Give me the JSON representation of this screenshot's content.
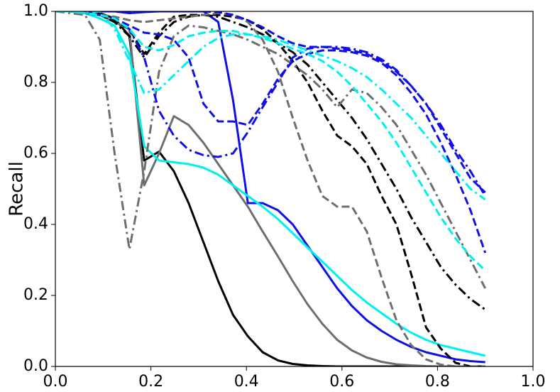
{
  "chart_data": {
    "type": "line",
    "y_label": "Recall",
    "x": [
      0,
      0.031,
      0.062,
      0.093,
      0.124,
      0.155,
      0.186,
      0.217,
      0.248,
      0.279,
      0.31,
      0.341,
      0.372,
      0.403,
      0.434,
      0.466,
      0.497,
      0.528,
      0.559,
      0.59,
      0.621,
      0.652,
      0.683,
      0.714,
      0.745,
      0.776,
      0.807,
      0.838,
      0.869,
      0.9
    ],
    "xlim": [
      0,
      1
    ],
    "ylim": [
      0,
      1
    ],
    "xticks": [
      {
        "value": 0,
        "label": "0.0"
      },
      0.2,
      0.4,
      0.6,
      0.8,
      {
        "value": 1,
        "label": "1.0"
      }
    ],
    "yticks": [
      {
        "value": 0,
        "label": "0.0"
      },
      0.2,
      0.4,
      0.6,
      0.8,
      {
        "value": 1,
        "label": "1.0"
      }
    ],
    "series": [
      {
        "color": "#000000",
        "dash": "solid",
        "values": [
          1,
          1,
          1,
          0.995,
          0.98,
          0.93,
          0.58,
          0.605,
          0.55,
          0.46,
          0.35,
          0.24,
          0.145,
          0.085,
          0.04,
          0.017,
          0.007,
          0.003,
          0.001,
          0,
          0,
          0,
          0,
          0,
          0,
          0,
          0,
          0,
          0,
          0
        ]
      },
      {
        "color": "#6e6e6e",
        "dash": "solid",
        "values": [
          1,
          1,
          0.995,
          0.99,
          0.97,
          0.95,
          0.51,
          0.6,
          0.705,
          0.68,
          0.63,
          0.57,
          0.51,
          0.45,
          0.38,
          0.31,
          0.24,
          0.175,
          0.12,
          0.075,
          0.045,
          0.025,
          0.013,
          0.006,
          0.003,
          0.001,
          0,
          0,
          0,
          0
        ]
      },
      {
        "color": "#1010e6",
        "dash": "solid",
        "values": [
          1,
          1,
          1,
          1,
          1,
          0.995,
          0.998,
          1,
          1,
          1,
          1,
          0.97,
          0.75,
          0.46,
          0.46,
          0.44,
          0.4,
          0.34,
          0.28,
          0.22,
          0.17,
          0.13,
          0.1,
          0.075,
          0.055,
          0.04,
          0.03,
          0.02,
          0.015,
          0.012
        ]
      },
      {
        "color": "#00f0f0",
        "dash": "solid",
        "values": [
          1,
          1,
          0.995,
          0.98,
          0.96,
          0.88,
          0.62,
          0.58,
          0.575,
          0.57,
          0.56,
          0.54,
          0.51,
          0.48,
          0.45,
          0.415,
          0.375,
          0.335,
          0.295,
          0.255,
          0.215,
          0.18,
          0.15,
          0.12,
          0.095,
          0.075,
          0.06,
          0.05,
          0.04,
          0.03
        ]
      },
      {
        "color": "#000000",
        "dash": "dashed",
        "values": [
          1,
          1,
          0.995,
          0.99,
          0.975,
          0.95,
          0.88,
          0.94,
          0.985,
          0.99,
          0.99,
          0.99,
          0.985,
          0.975,
          0.95,
          0.91,
          0.86,
          0.8,
          0.72,
          0.65,
          0.62,
          0.57,
          0.48,
          0.4,
          0.26,
          0.11,
          0.05,
          0.01,
          0,
          0
        ]
      },
      {
        "color": "#000000",
        "dash": "dashdot",
        "values": [
          1,
          1,
          0.995,
          0.99,
          0.97,
          0.93,
          0.87,
          0.93,
          0.97,
          0.985,
          0.99,
          0.985,
          0.97,
          0.955,
          0.935,
          0.91,
          0.885,
          0.85,
          0.8,
          0.75,
          0.7,
          0.64,
          0.57,
          0.5,
          0.42,
          0.35,
          0.28,
          0.23,
          0.19,
          0.16
        ]
      },
      {
        "color": "#6e6e6e",
        "dash": "dashed",
        "values": [
          1,
          1,
          0.995,
          0.99,
          0.985,
          0.975,
          0.97,
          0.975,
          0.98,
          0.985,
          0.99,
          0.995,
          0.99,
          0.97,
          0.92,
          0.83,
          0.7,
          0.58,
          0.48,
          0.45,
          0.45,
          0.38,
          0.25,
          0.13,
          0.06,
          0.02,
          0.005,
          0,
          0,
          0
        ]
      },
      {
        "color": "#6e6e6e",
        "dash": "dashdot",
        "values": [
          1,
          0.995,
          0.99,
          0.92,
          0.6,
          0.33,
          0.55,
          0.83,
          0.93,
          0.96,
          0.955,
          0.945,
          0.935,
          0.92,
          0.9,
          0.88,
          0.85,
          0.82,
          0.78,
          0.73,
          0.78,
          0.77,
          0.73,
          0.68,
          0.61,
          0.54,
          0.46,
          0.38,
          0.3,
          0.22
        ]
      },
      {
        "color": "#1010e6",
        "dash": "dashed",
        "values": [
          1,
          1,
          1,
          1,
          1,
          1,
          1,
          1,
          1,
          1,
          1,
          0.998,
          0.99,
          0.975,
          0.955,
          0.93,
          0.91,
          0.9,
          0.9,
          0.895,
          0.89,
          0.88,
          0.86,
          0.83,
          0.79,
          0.74,
          0.67,
          0.6,
          0.53,
          0.49
        ]
      },
      {
        "color": "#1010e6",
        "dash": "dashed",
        "values": [
          1,
          1,
          0.995,
          0.99,
          0.98,
          0.96,
          0.94,
          0.935,
          0.92,
          0.87,
          0.74,
          0.69,
          0.69,
          0.68,
          0.74,
          0.81,
          0.86,
          0.88,
          0.89,
          0.89,
          0.885,
          0.875,
          0.855,
          0.82,
          0.77,
          0.71,
          0.63,
          0.54,
          0.44,
          0.32
        ]
      },
      {
        "color": "#1010e6",
        "dash": "dashdot",
        "values": [
          1,
          1,
          0.995,
          0.99,
          0.98,
          0.95,
          0.87,
          0.72,
          0.65,
          0.61,
          0.595,
          0.59,
          0.6,
          0.66,
          0.73,
          0.8,
          0.87,
          0.895,
          0.9,
          0.9,
          0.895,
          0.885,
          0.865,
          0.835,
          0.79,
          0.74,
          0.68,
          0.61,
          0.55,
          0.48
        ]
      },
      {
        "color": "#00f0f0",
        "dash": "dashed",
        "values": [
          1,
          1,
          0.995,
          0.99,
          0.98,
          0.95,
          0.9,
          0.89,
          0.905,
          0.93,
          0.94,
          0.945,
          0.945,
          0.935,
          0.925,
          0.91,
          0.895,
          0.88,
          0.86,
          0.83,
          0.79,
          0.74,
          0.69,
          0.63,
          0.56,
          0.49,
          0.42,
          0.36,
          0.31,
          0.27
        ]
      },
      {
        "color": "#00f0f0",
        "dash": "dashdot",
        "values": [
          1,
          1,
          0.995,
          1,
          0.95,
          0.86,
          0.77,
          0.78,
          0.82,
          0.86,
          0.9,
          0.925,
          0.935,
          0.935,
          0.93,
          0.92,
          0.905,
          0.89,
          0.875,
          0.86,
          0.84,
          0.815,
          0.78,
          0.74,
          0.7,
          0.65,
          0.6,
          0.55,
          0.5,
          0.47
        ]
      }
    ]
  }
}
